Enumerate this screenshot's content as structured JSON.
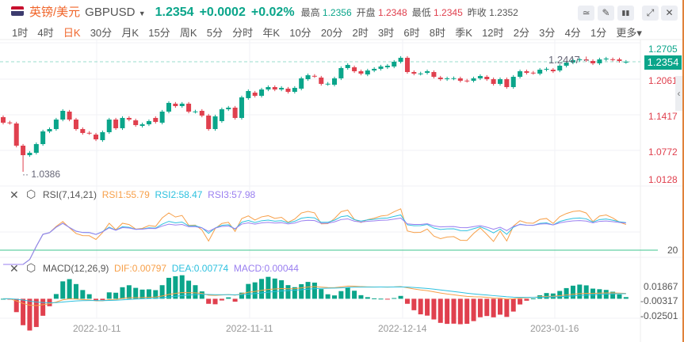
{
  "header": {
    "title": "英镑/美元",
    "symbol": "GBPUSD",
    "price": "1.2354",
    "change": "+0.0002",
    "change_pct": "+0.02%",
    "high_label": "最高",
    "high": "1.2356",
    "open_label": "开盘",
    "open": "1.2348",
    "low_label": "最低",
    "low": "1.2345",
    "prev_label": "昨收",
    "prev": "1.2352",
    "tools": [
      {
        "name": "indicator-icon",
        "glyph": "≃"
      },
      {
        "name": "draw-icon",
        "glyph": "✎"
      },
      {
        "name": "candle-type-icon",
        "glyph": "▮▮"
      },
      {
        "name": "expand-icon",
        "glyph": "⤢"
      },
      {
        "name": "close-icon",
        "glyph": "✕"
      }
    ]
  },
  "tabs": [
    "1时",
    "4时",
    "日K",
    "30分",
    "月K",
    "15分",
    "周K",
    "5分",
    "分时",
    "年K",
    "10分",
    "20分",
    "2时",
    "3时",
    "6时",
    "8时",
    "季K",
    "12时",
    "2分",
    "3分",
    "4分",
    "1分",
    "更多▾"
  ],
  "active_tab": "日K",
  "price_axis": [
    "1.2705",
    "1.2061",
    "1.1417",
    "1.0772",
    "1.0128"
  ],
  "current_price": "1.2354",
  "annotations": {
    "min": "1.0386",
    "max": "1.2447"
  },
  "rsi": {
    "name": "RSI(7,14,21)",
    "rsi1": "RSI1:55.79",
    "rsi2": "RSI2:58.47",
    "rsi3": "RSI3:57.98",
    "level": "20"
  },
  "macd": {
    "name": "MACD(12,26,9)",
    "dif": "DIF:0.00797",
    "dea": "DEA:0.00774",
    "macd": "MACD:0.00044",
    "axis": [
      "0.01867",
      "-0.00317",
      "-0.02501"
    ]
  },
  "dates": [
    "2022-10-11",
    "2022-11-11",
    "2022-12-14",
    "2023-01-16"
  ],
  "colors": {
    "up": "#0aa58a",
    "down": "#e0404e",
    "rsi1": "#f7a04a",
    "rsi2": "#2ec1df",
    "rsi3": "#9a7ff0",
    "accent": "#f0652a"
  },
  "chart_data": {
    "type": "candlestick",
    "fields": [
      "open",
      "close"
    ],
    "low_override": {
      "index": 3,
      "low": 1.0386
    },
    "high_override": {
      "index": 88,
      "high": 1.2447
    },
    "candles": [
      [
        1.1363,
        1.1264
      ],
      [
        1.1268,
        1.126
      ],
      [
        1.125,
        1.0853
      ],
      [
        1.0853,
        1.0683
      ],
      [
        1.0683,
        1.0726
      ],
      [
        1.0726,
        1.0881
      ],
      [
        1.0881,
        1.1108
      ],
      [
        1.1108,
        1.115
      ],
      [
        1.115,
        1.132
      ],
      [
        1.132,
        1.1476
      ],
      [
        1.1462,
        1.132
      ],
      [
        1.132,
        1.115
      ],
      [
        1.115,
        1.108
      ],
      [
        1.1083,
        1.1077
      ],
      [
        1.1051,
        1.0966
      ],
      [
        1.0952,
        1.1094
      ],
      [
        1.1094,
        1.132
      ],
      [
        1.132,
        1.1165
      ],
      [
        1.1165,
        1.1349
      ],
      [
        1.1349,
        1.132
      ],
      [
        1.1306,
        1.1221
      ],
      [
        1.1207,
        1.1235
      ],
      [
        1.1235,
        1.1292
      ],
      [
        1.1349,
        1.1278
      ],
      [
        1.1264,
        1.1462
      ],
      [
        1.1462,
        1.1618
      ],
      [
        1.1604,
        1.1561
      ],
      [
        1.1561,
        1.1604
      ],
      [
        1.1604,
        1.1462
      ],
      [
        1.1459,
        1.1465
      ],
      [
        1.1476,
        1.1391
      ],
      [
        1.1391,
        1.115
      ],
      [
        1.115,
        1.1377
      ],
      [
        1.1292,
        1.1504
      ],
      [
        1.1504,
        1.1533
      ],
      [
        1.1533,
        1.1349
      ],
      [
        1.1349,
        1.1717
      ],
      [
        1.1703,
        1.183
      ],
      [
        1.1802,
        1.1745
      ],
      [
        1.1745,
        1.1858
      ],
      [
        1.1858,
        1.1901
      ],
      [
        1.1901,
        1.1858
      ],
      [
        1.1858,
        1.1887
      ],
      [
        1.1873,
        1.1816
      ],
      [
        1.1816,
        1.1887
      ],
      [
        1.1873,
        1.2057
      ],
      [
        1.2042,
        1.2113
      ],
      [
        1.2102,
        1.2096
      ],
      [
        1.2071,
        1.1958
      ],
      [
        1.1955,
        1.1961
      ],
      [
        1.1943,
        1.2057
      ],
      [
        1.2057,
        1.2241
      ],
      [
        1.2241,
        1.2297
      ],
      [
        1.2255,
        1.2184
      ],
      [
        1.2184,
        1.2142
      ],
      [
        1.2127,
        1.2198
      ],
      [
        1.2198,
        1.2227
      ],
      [
        1.2227,
        1.2269
      ],
      [
        1.2255,
        1.2283
      ],
      [
        1.2269,
        1.2354
      ],
      [
        1.2354,
        1.2425
      ],
      [
        1.2425,
        1.217
      ],
      [
        1.217,
        1.2142
      ],
      [
        1.2139,
        1.2145
      ],
      [
        1.2156,
        1.2184
      ],
      [
        1.217,
        1.2085
      ],
      [
        1.2071,
        1.2042
      ],
      [
        1.2042,
        1.2057
      ],
      [
        1.2054,
        1.206
      ],
      [
        1.2057,
        1.2014
      ],
      [
        1.2017,
        1.2011
      ],
      [
        1.2014,
        1.2057
      ],
      [
        1.2057,
        1.2099
      ],
      [
        1.2085,
        1.2042
      ],
      [
        1.2042,
        1.1958
      ],
      [
        1.1958,
        1.2042
      ],
      [
        1.2042,
        1.1901
      ],
      [
        1.1901,
        1.2085
      ],
      [
        1.2085,
        1.2184
      ],
      [
        1.2184,
        1.2156
      ],
      [
        1.2159,
        1.2153
      ],
      [
        1.2142,
        1.2212
      ],
      [
        1.2212,
        1.2227
      ],
      [
        1.2212,
        1.2184
      ],
      [
        1.2198,
        1.2283
      ],
      [
        1.2283,
        1.234
      ],
      [
        1.234,
        1.2382
      ],
      [
        1.2382,
        1.2396
      ],
      [
        1.2396,
        1.2382
      ],
      [
        1.2368,
        1.2326
      ],
      [
        1.2326,
        1.2396
      ],
      [
        1.2396,
        1.2411
      ],
      [
        1.2399,
        1.2393
      ],
      [
        1.2396,
        1.2368
      ],
      [
        1.2348,
        1.2354
      ]
    ]
  }
}
